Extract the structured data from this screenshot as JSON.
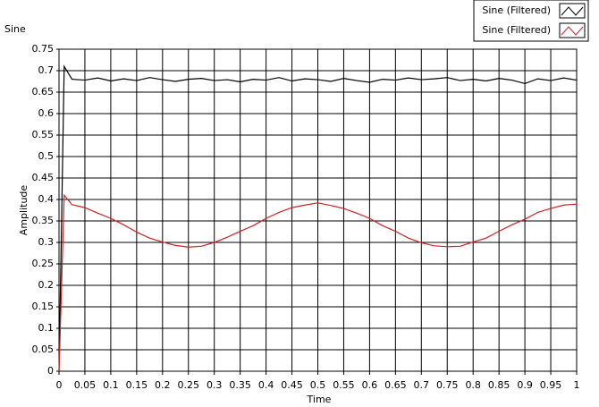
{
  "chart_data": {
    "type": "line",
    "title": "Sine",
    "xlabel": "Time",
    "ylabel": "Amplitude",
    "x": [
      0,
      0.005,
      0.01,
      0.025,
      0.05,
      0.075,
      0.1,
      0.125,
      0.15,
      0.175,
      0.2,
      0.225,
      0.25,
      0.275,
      0.3,
      0.325,
      0.35,
      0.375,
      0.4,
      0.425,
      0.45,
      0.475,
      0.5,
      0.525,
      0.55,
      0.575,
      0.6,
      0.625,
      0.65,
      0.675,
      0.7,
      0.725,
      0.75,
      0.775,
      0.8,
      0.825,
      0.85,
      0.875,
      0.9,
      0.925,
      0.95,
      0.975,
      1
    ],
    "series": [
      {
        "name": "Sine (Filtered)",
        "color": "#000000",
        "values": [
          0,
          0.35,
          0.71,
          0.68,
          0.678,
          0.683,
          0.676,
          0.681,
          0.677,
          0.684,
          0.679,
          0.675,
          0.68,
          0.682,
          0.677,
          0.679,
          0.674,
          0.68,
          0.678,
          0.684,
          0.676,
          0.681,
          0.679,
          0.675,
          0.682,
          0.677,
          0.673,
          0.68,
          0.678,
          0.683,
          0.679,
          0.681,
          0.684,
          0.677,
          0.68,
          0.676,
          0.682,
          0.678,
          0.67,
          0.681,
          0.677,
          0.683,
          0.678
        ]
      },
      {
        "name": "Sine (Filtered)",
        "color": "#d42020",
        "values": [
          0,
          0.2,
          0.41,
          0.388,
          0.381,
          0.368,
          0.356,
          0.341,
          0.324,
          0.31,
          0.301,
          0.293,
          0.289,
          0.291,
          0.3,
          0.312,
          0.326,
          0.339,
          0.356,
          0.37,
          0.381,
          0.387,
          0.392,
          0.386,
          0.379,
          0.368,
          0.356,
          0.339,
          0.326,
          0.31,
          0.299,
          0.292,
          0.29,
          0.291,
          0.301,
          0.31,
          0.326,
          0.341,
          0.354,
          0.37,
          0.379,
          0.387,
          0.389
        ]
      }
    ],
    "xlim": [
      0,
      1
    ],
    "ylim": [
      0,
      0.75
    ],
    "xticks": [
      0,
      0.05,
      0.1,
      0.15,
      0.2,
      0.25,
      0.3,
      0.35,
      0.4,
      0.45,
      0.5,
      0.55,
      0.6,
      0.65,
      0.7,
      0.75,
      0.8,
      0.85,
      0.9,
      0.95,
      1
    ],
    "yticks": [
      0,
      0.05,
      0.1,
      0.15,
      0.2,
      0.25,
      0.3,
      0.35,
      0.4,
      0.45,
      0.5,
      0.55,
      0.6,
      0.65,
      0.7,
      0.75
    ],
    "grid": true,
    "legend": "top-right"
  }
}
